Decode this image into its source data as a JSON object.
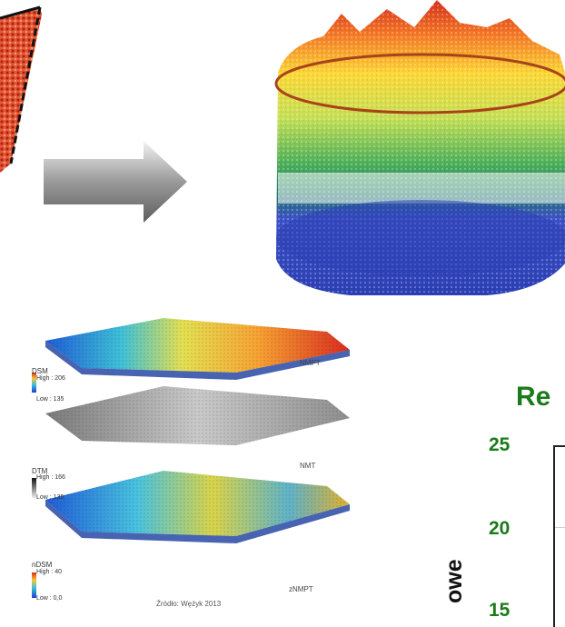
{
  "dem_panel": {
    "dsm": {
      "title": "DSM",
      "high": "High : 206",
      "low": "Low : 135",
      "tag": "NMPT"
    },
    "dtm": {
      "title": "DTM",
      "high": "High : 166",
      "low": "Low : 135",
      "tag": "NMT"
    },
    "ndsm": {
      "title": "nDSM",
      "high": "High : 40",
      "low": "Low : 0,0",
      "tag": "zNMPT"
    },
    "source": "Źródło: Wężyk 2013"
  },
  "chart_fragment": {
    "title_partial": "Re",
    "yticks": [
      "25",
      "20",
      "15"
    ],
    "ylabel_partial": "owe"
  },
  "colors": {
    "accent_green": "#1b7a1b",
    "arrow": "#8a8a8a",
    "cloud_high": "#d7301f",
    "cloud_mid": "#fdd835",
    "cloud_low": "#2c3fb5"
  }
}
